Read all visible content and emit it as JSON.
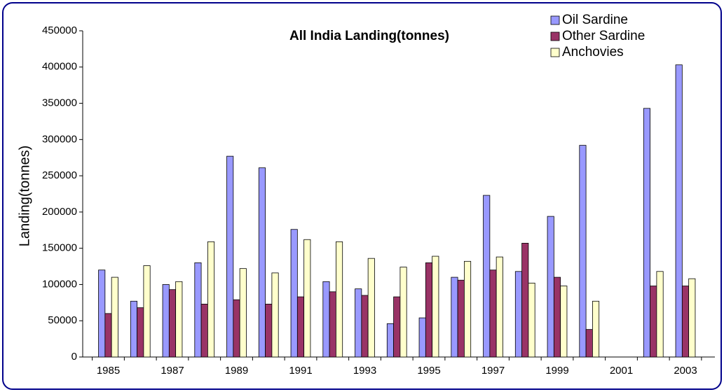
{
  "chart_data": {
    "type": "bar",
    "title": "All India Landing(tonnes)",
    "y_label": "Landing(tonnes)",
    "categories": [
      "1985",
      null,
      "1987",
      null,
      "1989",
      null,
      "1991",
      null,
      "1993",
      null,
      "1995",
      null,
      "1997",
      null,
      "1999",
      null,
      "2001",
      null,
      "2003"
    ],
    "series": [
      {
        "name": "Oil Sardine",
        "color": "#9999ff",
        "values": [
          120000,
          77000,
          100000,
          130000,
          277000,
          261000,
          176000,
          104000,
          94000,
          46000,
          54000,
          110000,
          223000,
          118000,
          194000,
          292000,
          null,
          343000,
          403000
        ]
      },
      {
        "name": "Other Sardine",
        "color": "#993366",
        "values": [
          60000,
          68000,
          93000,
          73000,
          79000,
          73000,
          83000,
          90000,
          85000,
          83000,
          130000,
          106000,
          120000,
          157000,
          110000,
          38000,
          null,
          98000,
          98000
        ]
      },
      {
        "name": "Anchovies",
        "color": "#ffffcc",
        "values": [
          110000,
          126000,
          104000,
          159000,
          122000,
          116000,
          162000,
          159000,
          136000,
          124000,
          139000,
          132000,
          138000,
          102000,
          98000,
          77000,
          null,
          118000,
          108000
        ]
      }
    ],
    "ylim": [
      0,
      450000
    ],
    "yticks": [
      0,
      50000,
      100000,
      150000,
      200000,
      250000,
      300000,
      350000,
      400000,
      450000
    ],
    "grid": false,
    "legend": "top-right"
  }
}
